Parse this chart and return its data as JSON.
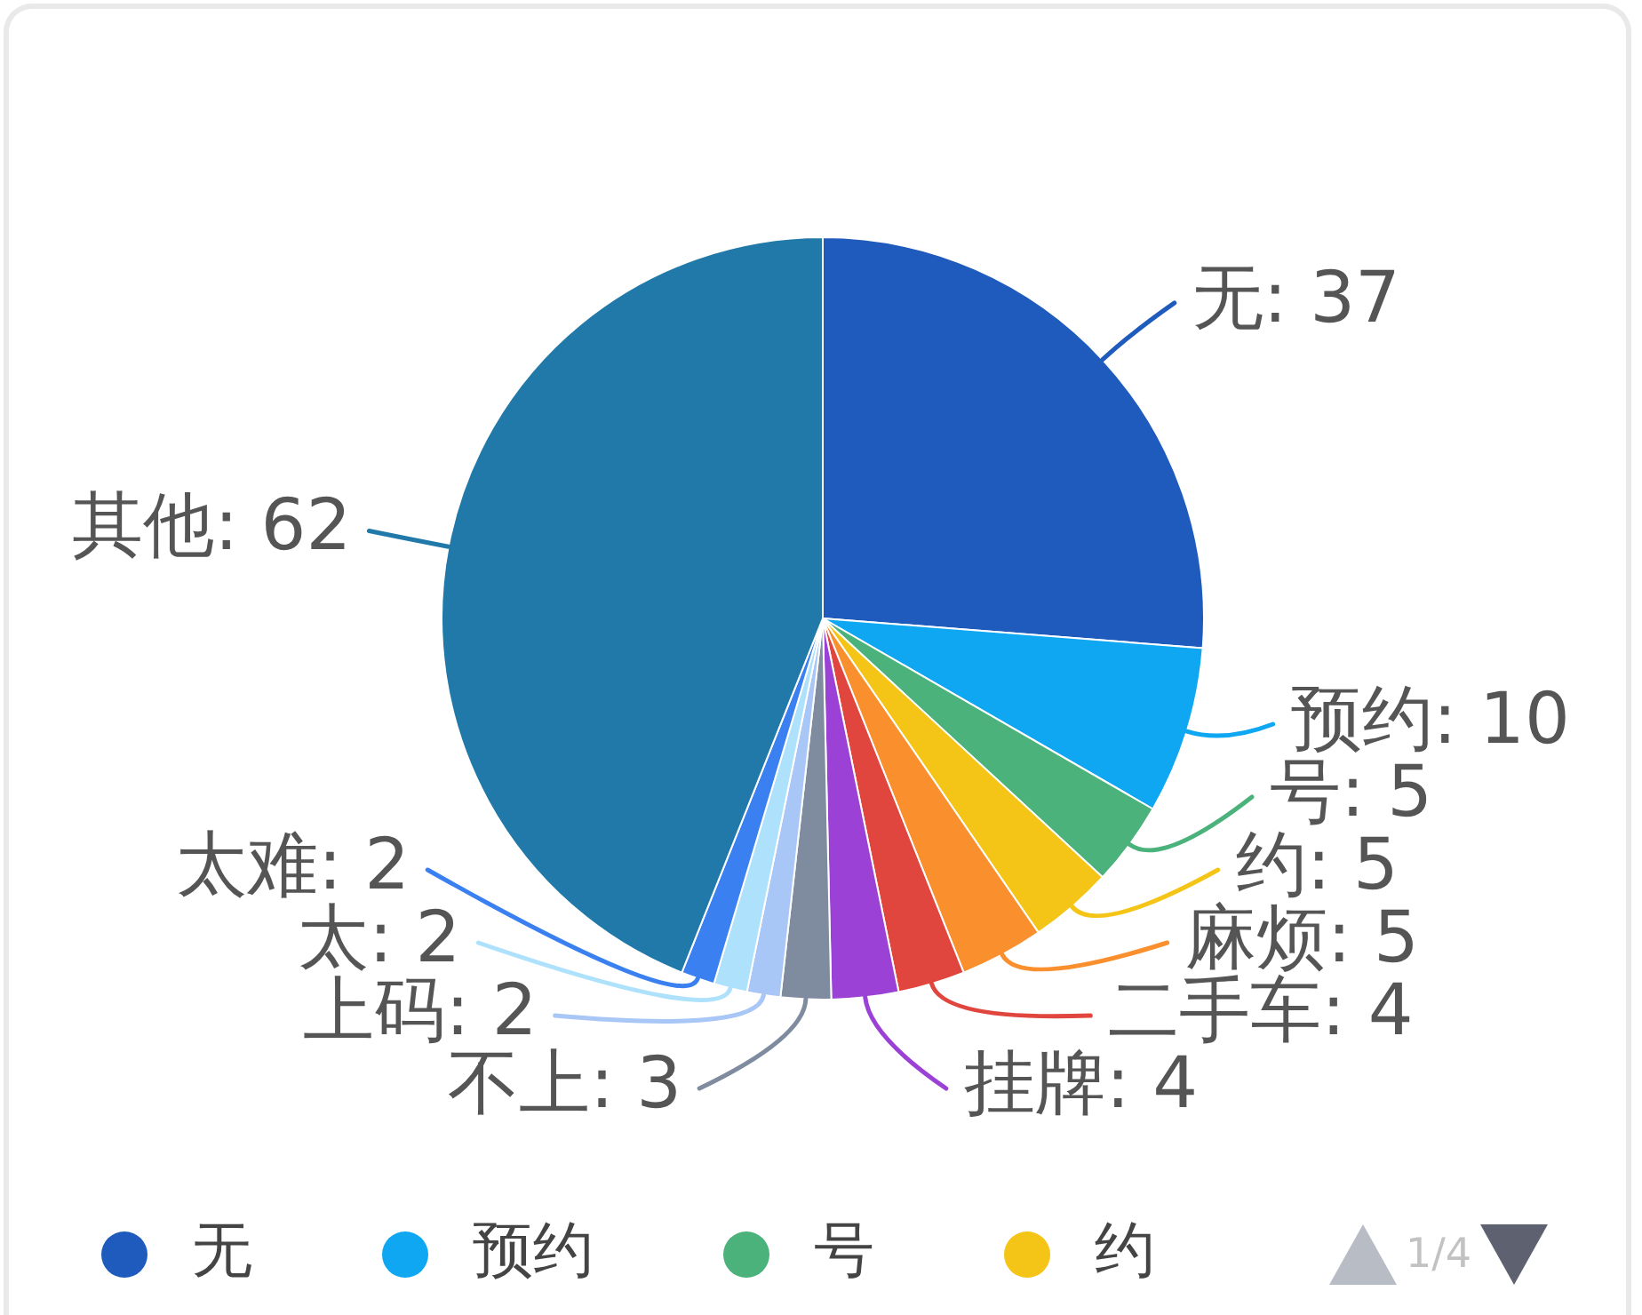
{
  "chart_data": {
    "type": "pie",
    "categories": [
      "无",
      "预约",
      "号",
      "约",
      "麻烦",
      "二手车",
      "挂牌",
      "不上",
      "上码",
      "太",
      "太难",
      "其他"
    ],
    "values": [
      37,
      10,
      5,
      5,
      5,
      4,
      4,
      3,
      2,
      2,
      2,
      62
    ],
    "value_labels": [
      ": 37",
      ": 10",
      ": 5",
      ": 5",
      ": 5",
      ": 4",
      ": 4",
      ": 3",
      ": 2",
      ": 2",
      ": 2",
      ": 62"
    ],
    "colors": [
      "#1f5bbc",
      "#0fa7f1",
      "#4bb27b",
      "#f4c516",
      "#fa8f2e",
      "#e1463e",
      "#9b41d6",
      "#7f8b9e",
      "#a8c6f6",
      "#aee1fb",
      "#3a80f0",
      "#2079a8"
    ],
    "legend": "bottom",
    "annotations": [
      "1/4"
    ]
  }
}
